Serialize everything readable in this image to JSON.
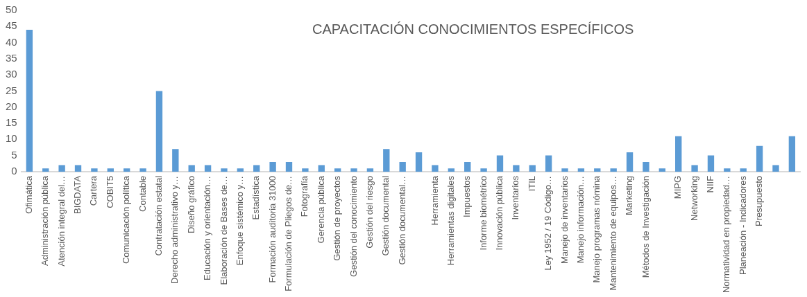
{
  "chart_data": {
    "type": "bar",
    "title": "CAPACITACIÓN CONOCIMIENTOS ESPECÍFICOS",
    "categories": [
      "Ofimática",
      "Administración pública",
      "Atención integral del…",
      "BIGDATA",
      "Cartera",
      "COBIT5",
      "Comunicación política",
      "Contable",
      "Contratación estatal",
      "Derecho administrativo y…",
      "Diseño gráfico",
      "Educación y orientación…",
      "Elaboración de Bases de…",
      "Enfoque sistémico y…",
      "Estadística",
      "Formación auditoria 31000",
      "Formulación de Pliegos de…",
      "Fotografía",
      "Gerencia pública",
      "Gestión de proyectos",
      "Gestión del conocimiento",
      "Gestión del riesgo",
      "Gestión documental",
      "Gestión documental…",
      null,
      "Herramienta",
      "Herramientas digitales",
      "Impuestos",
      "Informe biométrico",
      "Innovación pública",
      "Inventarios",
      "ITIL",
      "Ley 1952 / 19 Código…",
      "Manejo de inventarios",
      "Manejo información…",
      "Manejo programas nómina",
      "Mantenimiento de equipos…",
      "Marketing",
      "Métodos de Investigación",
      null,
      "MIPG",
      "Networking",
      "NIIF",
      "Normatividad en propiedad…",
      "Planeación - Indicadores",
      "Presupuesto",
      null,
      null
    ],
    "values": [
      44,
      1,
      2,
      2,
      1,
      1,
      1,
      1,
      25,
      7,
      2,
      2,
      1,
      1,
      2,
      3,
      3,
      1,
      2,
      1,
      1,
      1,
      7,
      3,
      6,
      2,
      1,
      3,
      1,
      5,
      2,
      2,
      5,
      1,
      1,
      1,
      1,
      6,
      3,
      1,
      11,
      2,
      5,
      1,
      1,
      8,
      2,
      11
    ],
    "color": "#5b9bd5",
    "ylim": [
      0,
      50
    ],
    "yticks": [
      0,
      5,
      10,
      15,
      20,
      25,
      30,
      35,
      40,
      45,
      50
    ],
    "grid": false,
    "legend": false
  }
}
